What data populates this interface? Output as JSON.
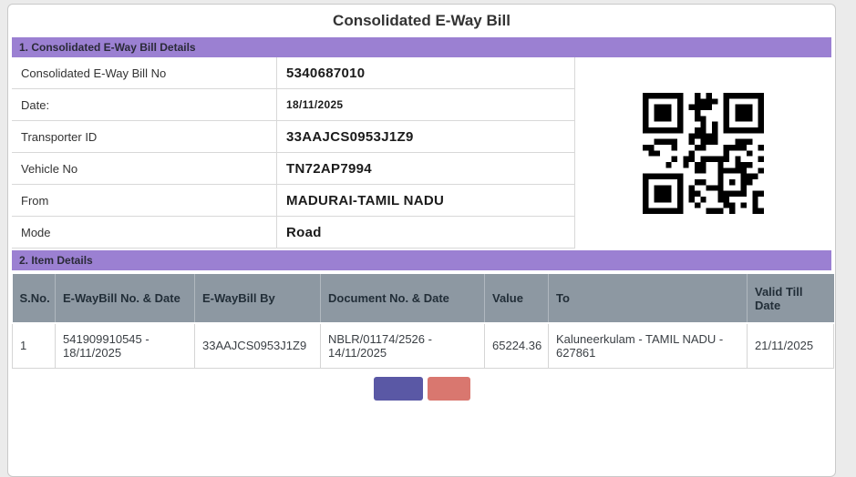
{
  "page": {
    "title": "Consolidated E-Way Bill"
  },
  "colors": {
    "section_header_bg": "#9b80d2",
    "table_header_bg": "#8d98a2",
    "primary_button_bg": "#5a58a5",
    "secondary_button_bg": "#d9776f"
  },
  "section1": {
    "header": "1. Consolidated E-Way Bill Details",
    "rows": [
      {
        "label": "Consolidated E-Way Bill No",
        "value": "5340687010"
      },
      {
        "label": "Date:",
        "value": "18/11/2025"
      },
      {
        "label": "Transporter ID",
        "value": "33AAJCS0953J1Z9"
      },
      {
        "label": "Vehicle No",
        "value": "TN72AP7994"
      },
      {
        "label": "From",
        "value": "MADURAI-TAMIL NADU"
      },
      {
        "label": "Mode",
        "value": "Road"
      }
    ],
    "qr_icon": "qr-code-icon"
  },
  "section2": {
    "header": "2. Item Details",
    "table": {
      "columns": [
        "S.No.",
        "E-WayBill No. & Date",
        "E-WayBill By",
        "Document No. & Date",
        "Value",
        "To",
        "Valid Till Date"
      ],
      "rows": [
        [
          "1",
          "541909910545 - 18/11/2025",
          "33AAJCS0953J1Z9",
          "NBLR/01174/2526 - 14/11/2025",
          "65224.36",
          "Kaluneerkulam - TAMIL NADU - 627861",
          "21/11/2025"
        ]
      ]
    }
  },
  "footer": {
    "buttons": [
      {
        "name": "primary-button",
        "label": ""
      },
      {
        "name": "secondary-button",
        "label": ""
      }
    ]
  }
}
